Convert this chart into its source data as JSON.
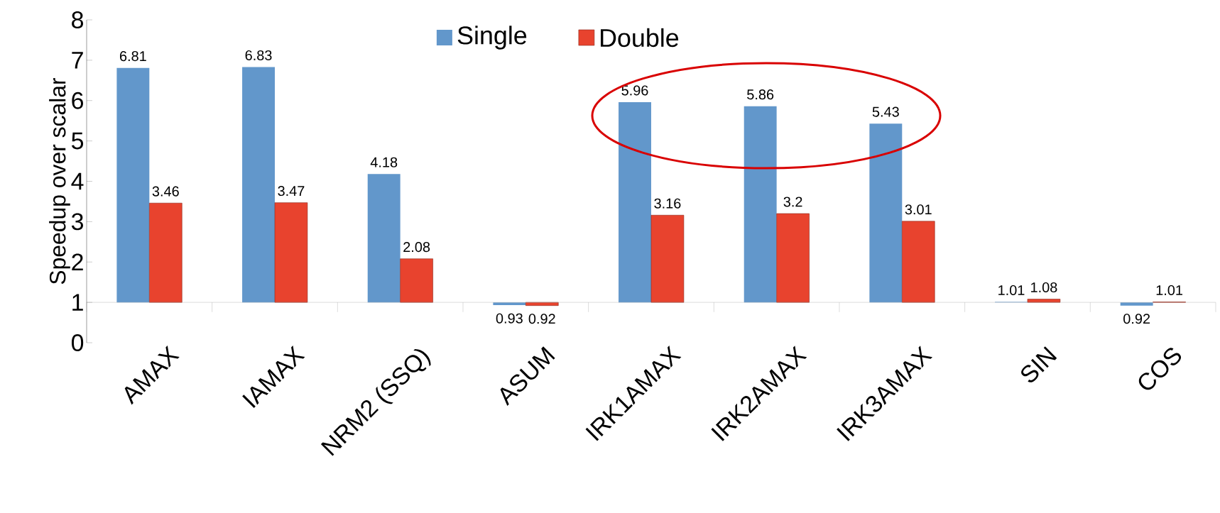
{
  "chart_data": {
    "type": "bar",
    "ylabel": "Speedup over scalar",
    "categories": [
      "AMAX",
      "IAMAX",
      "NRM2 (SSQ)",
      "ASUM",
      "IRK1AMAX",
      "IRK2AMAX",
      "IRK3AMAX",
      "SIN",
      "COS"
    ],
    "series": [
      {
        "name": "Single",
        "color": "#6297cb",
        "base": [
          1,
          1,
          1,
          1,
          1,
          1,
          1,
          1,
          1
        ],
        "values": [
          5.81,
          5.83,
          3.18,
          -0.07,
          4.96,
          4.86,
          4.43,
          0.01,
          -0.08
        ],
        "value_labels": [
          "6.81",
          "6.83",
          "4.18",
          "0.93",
          "5.96",
          "5.86",
          "5.43",
          "1.01",
          "0.92"
        ]
      },
      {
        "name": "Double",
        "color": "#e8432e",
        "base": [
          1,
          1,
          1,
          1,
          1,
          1,
          1,
          1,
          1
        ],
        "values": [
          2.46,
          2.47,
          1.08,
          -0.08,
          2.16,
          2.2,
          2.01,
          0.08,
          0.01
        ],
        "value_labels": [
          "3.46",
          "3.47",
          "2.08",
          "0.92",
          "3.16",
          "3.2",
          "3.01",
          "1.08",
          "1.01"
        ]
      }
    ],
    "ylim": [
      0,
      8
    ],
    "yticks": [
      0,
      1,
      2,
      3,
      4,
      5,
      6,
      7,
      8
    ],
    "legend": "top"
  }
}
